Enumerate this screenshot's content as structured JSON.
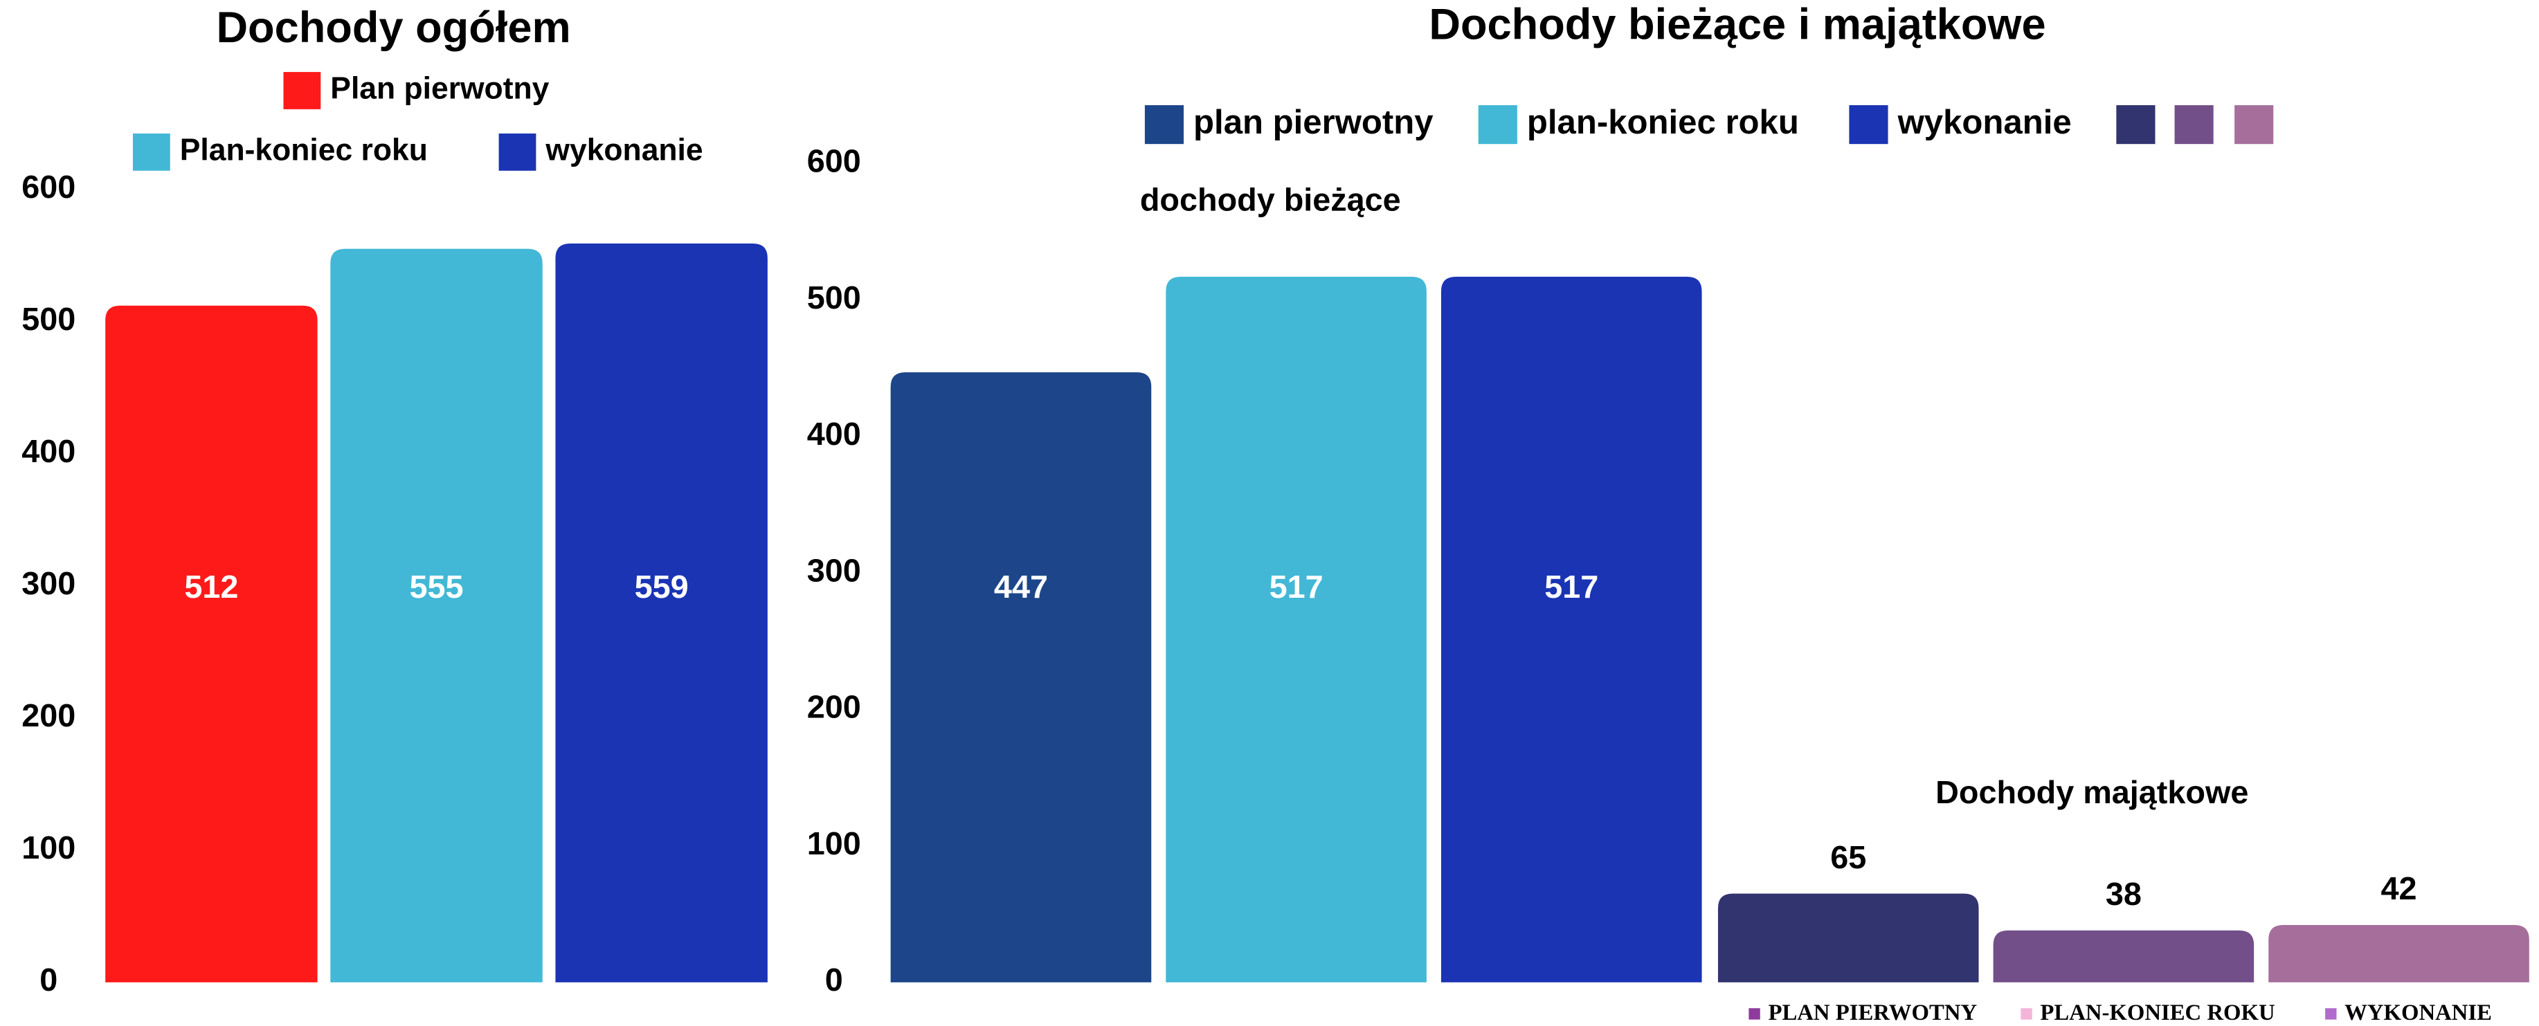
{
  "chart_data": [
    {
      "type": "bar",
      "title": "Dochody ogółem",
      "categories": [
        null
      ],
      "series": [
        {
          "name": "Plan pierwotny",
          "color": "#ff1a1a",
          "values": [
            512
          ]
        },
        {
          "name": "Plan-koniec roku",
          "color": "#42b8d6",
          "values": [
            555
          ]
        },
        {
          "name": "wykonanie",
          "color": "#1a34b4",
          "values": [
            559
          ]
        }
      ],
      "ylim": [
        0,
        600
      ],
      "yticks": [
        0,
        100,
        200,
        300,
        400,
        500,
        600
      ]
    },
    {
      "type": "bar",
      "title": "Dochody bieżące i majątkowe",
      "categories": [
        "dochody bieżące",
        "Dochody majątkowe"
      ],
      "series": [
        {
          "name": "plan pierwotny",
          "colors": [
            "#1c4689",
            "#31346e"
          ],
          "values": [
            447,
            65
          ]
        },
        {
          "name": "plan-koniec roku",
          "colors": [
            "#42b8d6",
            "#734f8a"
          ],
          "values": [
            517,
            38
          ]
        },
        {
          "name": "wykonanie",
          "colors": [
            "#1a34b4",
            "#a66f9b"
          ],
          "values": [
            517,
            42
          ]
        }
      ],
      "secondary_legend": [
        {
          "name": "PLAN PIERWOTNY",
          "color": "#8e3a9e"
        },
        {
          "name": "PLAN-KONIEC ROKU",
          "color": "#f4b4d8"
        },
        {
          "name": "WYKONANIE",
          "color": "#b06ccc"
        }
      ],
      "ylim": [
        0,
        600
      ],
      "yticks": [
        0,
        100,
        200,
        300,
        400,
        500,
        600
      ]
    }
  ]
}
